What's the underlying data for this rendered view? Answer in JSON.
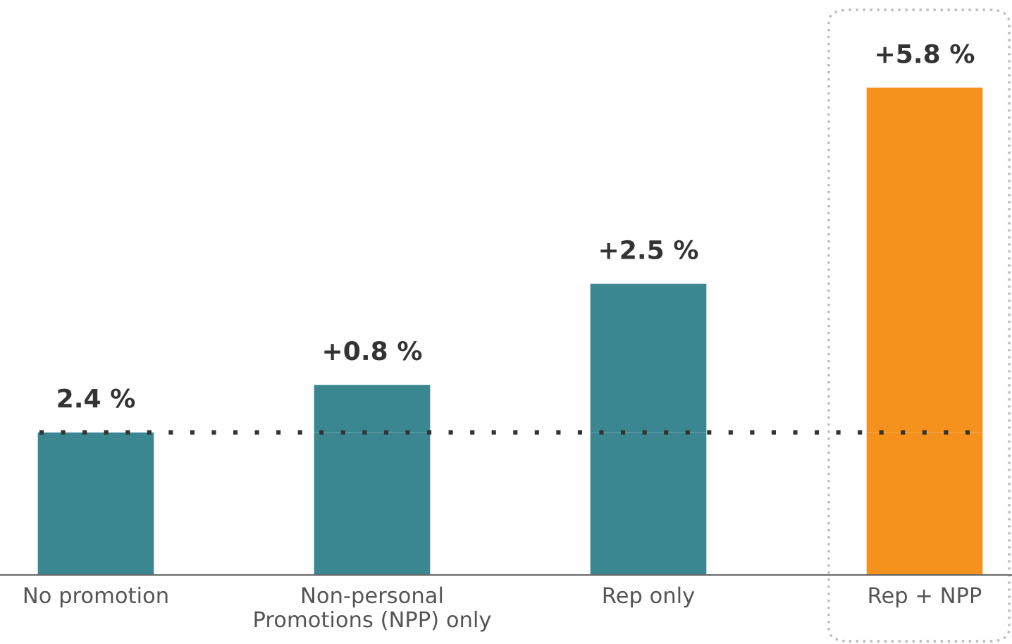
{
  "chart_data": {
    "type": "bar",
    "categories": [
      "No promotion",
      "Non-personal\nPromotions (NPP) only",
      "Rep only",
      "Rep + NPP"
    ],
    "stacked": true,
    "series": [
      {
        "colors": [
          "#3a8791",
          "#3a8791",
          "#3a8791",
          "#f5921e"
        ],
        "values": [
          2.4,
          2.4,
          2.4,
          2.4
        ],
        "value_labels": [
          "2.4 %",
          null,
          null,
          null
        ]
      },
      {
        "colors": [
          "#3a8791",
          "#3a8791",
          "#3a8791",
          "#f5921e"
        ],
        "values": [
          null,
          0.8,
          2.5,
          5.8
        ],
        "value_labels": [
          null,
          "+0.8 %",
          "+2.5 %",
          "+5.8 %"
        ]
      }
    ],
    "tick_labels": "x",
    "ref_lines": [
      {
        "axis": "y",
        "value": 2.4,
        "color": "#333333",
        "line_style": "dotted"
      }
    ]
  }
}
